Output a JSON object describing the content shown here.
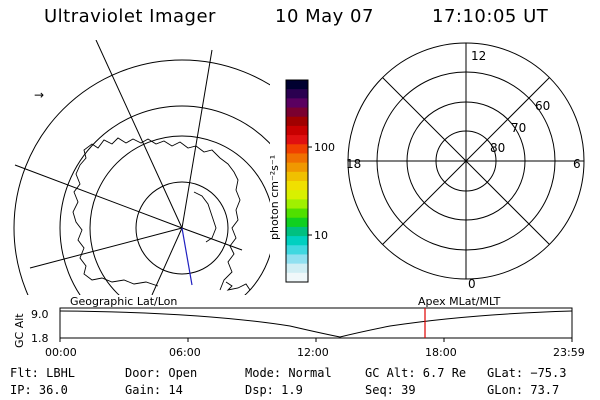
{
  "header": {
    "instrument": "Ultraviolet Imager",
    "date": "10 May 07",
    "time": "17:10:05 UT"
  },
  "colorbar": {
    "unit_label": "photon cm⁻²s⁻¹",
    "ticks": [
      "100",
      "10"
    ],
    "colors": [
      "#000030",
      "#2a0050",
      "#5a0060",
      "#7a0030",
      "#a00000",
      "#c80000",
      "#e01010",
      "#f04000",
      "#f07000",
      "#f09800",
      "#f0c000",
      "#f0e000",
      "#d8f000",
      "#a0f000",
      "#50e000",
      "#10d020",
      "#00c080",
      "#00d0c0",
      "#40d8e0",
      "#90e0f0",
      "#d0eef4",
      "#f0f8fa"
    ]
  },
  "geo_map": {
    "title": "Geographic Lat/Lon",
    "marker": "→"
  },
  "polar_plot": {
    "title": "Apex MLat/MLT",
    "mlt_labels": {
      "top": "12",
      "left": "18",
      "right": "6",
      "bottom": "0"
    },
    "lat_labels": [
      "60",
      "70",
      "80"
    ]
  },
  "altitude_panel": {
    "ylabel": "GC Alt",
    "yticks": [
      "9.0",
      "1.8"
    ],
    "xticks": [
      "00:00",
      "06:00",
      "12:00",
      "18:00",
      "23:59"
    ],
    "marker_color": "#e00000"
  },
  "footer": {
    "filter": "Flt: LBHL",
    "ip": "IP: 36.0",
    "door": "Door: Open",
    "gain": "Gain: 14",
    "mode": "Mode: Normal",
    "dsp": "Dsp:    1.9",
    "gc_alt": "GC Alt: 6.7 Re",
    "seq": "Seq: 39",
    "glat": "GLat: −75.3",
    "glon": "GLon:  73.7"
  }
}
